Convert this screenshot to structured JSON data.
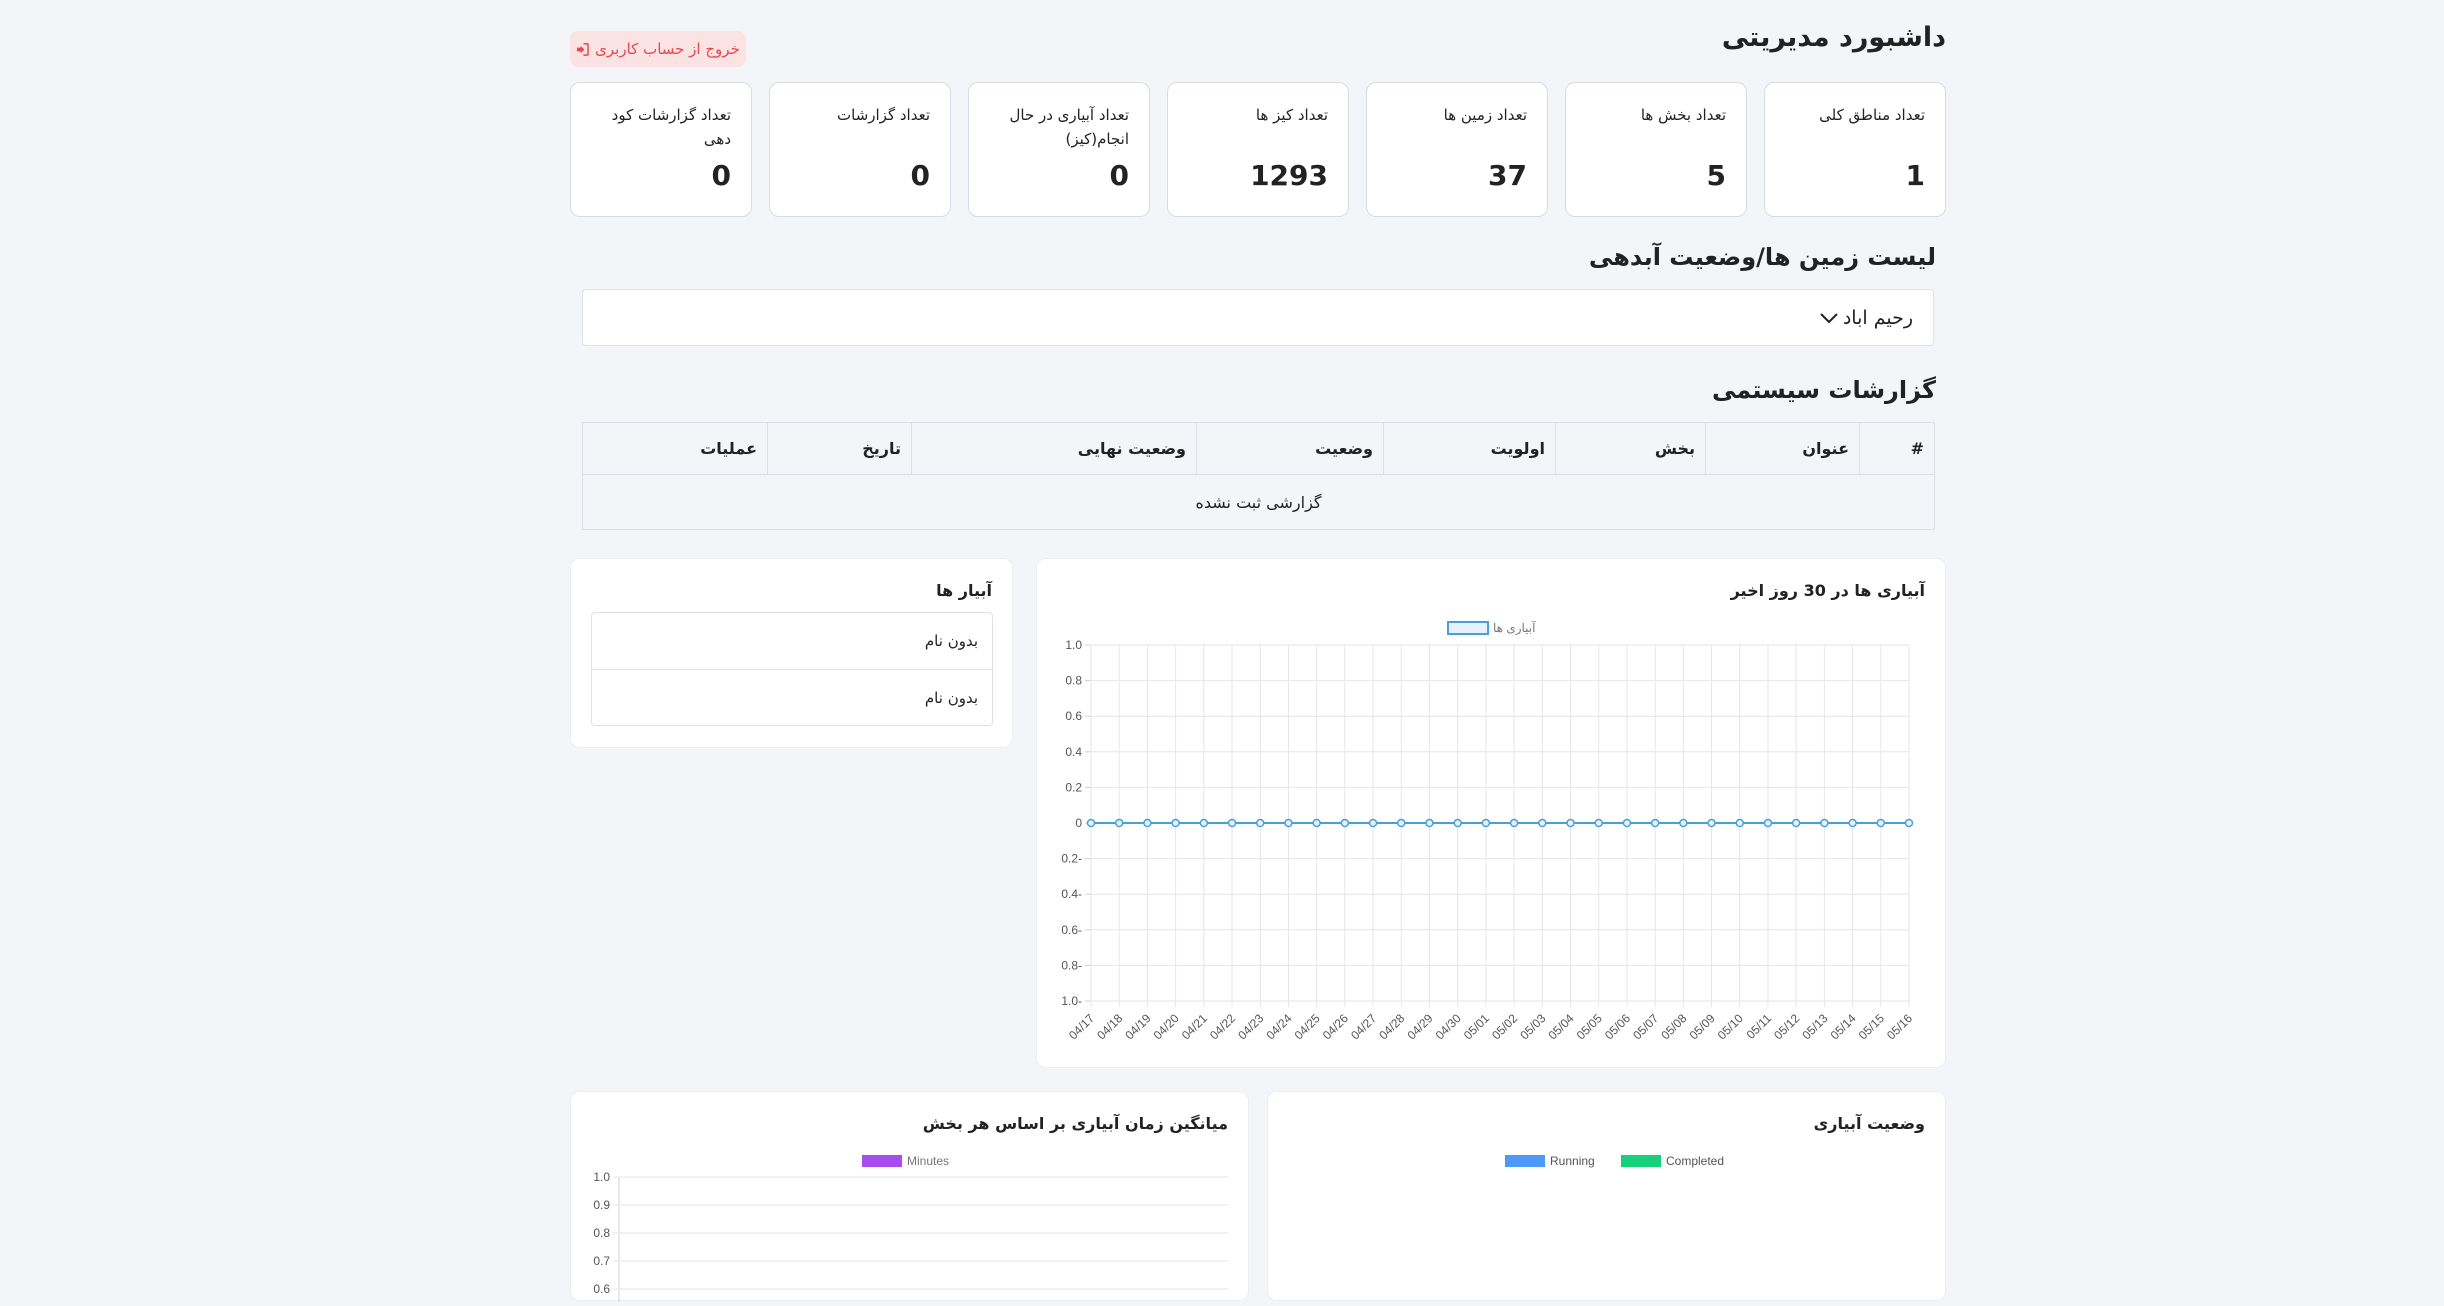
{
  "header": {
    "title": "داشبورد مدیریتی",
    "logout_label": "خروج از حساب کاربری"
  },
  "stats": [
    {
      "label": "تعداد مناطق کلی",
      "value": "1"
    },
    {
      "label": "تعداد بخش ها",
      "value": "5"
    },
    {
      "label": "تعداد زمین ها",
      "value": "37"
    },
    {
      "label": "تعداد کیز ها",
      "value": "1293"
    },
    {
      "label": "تعداد آبیاری در حال انجام(کیز)",
      "value": "0"
    },
    {
      "label": "تعداد گزارشات",
      "value": "0"
    },
    {
      "label": "تعداد گزارشات کود دهی",
      "value": "0"
    }
  ],
  "lands": {
    "title": "لیست زمین ها/وضعیت آبدهی",
    "selected": "رحیم اباد"
  },
  "reports": {
    "title": "گزارشات سیستمی",
    "columns": [
      "#",
      "عنوان",
      "بخش",
      "اولویت",
      "وضعیت",
      "وضعیت نهایی",
      "تاریخ",
      "عملیات"
    ],
    "empty": "گزارشی ثبت نشده"
  },
  "irrigators": {
    "title": "آبیار ها",
    "items": [
      "بدون نام",
      "بدون نام"
    ]
  },
  "charts": {
    "irrigations_30d_title": "آبیاری ها در 30 روز اخیر",
    "avg_time_title": "میانگین زمان آبیاری بر اساس هر بخش",
    "status_title": "وضعیت آبیاری"
  },
  "colors": {
    "line": "#4a9fd8",
    "running": "#4c9af5",
    "completed": "#19d07a",
    "minutes": "#a64df0",
    "logout_bg": "#fbe3e3",
    "logout_text": "#e5484d"
  },
  "chart_data": [
    {
      "type": "line",
      "title": "آبیاری ها در 30 روز اخیر",
      "legend": "top",
      "grid": true,
      "series": [
        {
          "name": "آبیاری ها",
          "values": [
            0,
            0,
            0,
            0,
            0,
            0,
            0,
            0,
            0,
            0,
            0,
            0,
            0,
            0,
            0,
            0,
            0,
            0,
            0,
            0,
            0,
            0,
            0,
            0,
            0,
            0,
            0,
            0,
            0,
            0
          ]
        }
      ],
      "x": [
        "04/17",
        "04/18",
        "04/19",
        "04/20",
        "04/21",
        "04/22",
        "04/23",
        "04/24",
        "04/25",
        "04/26",
        "04/27",
        "04/28",
        "04/29",
        "04/30",
        "05/01",
        "05/02",
        "05/03",
        "05/04",
        "05/05",
        "05/06",
        "05/07",
        "05/08",
        "05/09",
        "05/10",
        "05/11",
        "05/12",
        "05/13",
        "05/14",
        "05/15",
        "05/16"
      ],
      "y_ticks": [
        "1.0",
        "0.8",
        "0.6",
        "0.4",
        "0.2",
        "0",
        "0.2-",
        "0.4-",
        "0.6-",
        "0.8-",
        "1.0-"
      ],
      "ylim": [
        -1,
        1
      ]
    },
    {
      "type": "bar",
      "title": "میانگین زمان آبیاری بر اساس هر بخش",
      "legend": "top",
      "grid": true,
      "series": [
        {
          "name": "Minutes",
          "values": []
        }
      ],
      "y_ticks": [
        "1.0",
        "0.9",
        "0.8",
        "0.7",
        "0.6"
      ],
      "ylim": [
        0,
        1
      ]
    },
    {
      "type": "pie",
      "title": "وضعیت آبیاری",
      "legend": "top",
      "series": [
        {
          "name": "Running",
          "values": []
        },
        {
          "name": "Completed",
          "values": []
        }
      ]
    }
  ]
}
